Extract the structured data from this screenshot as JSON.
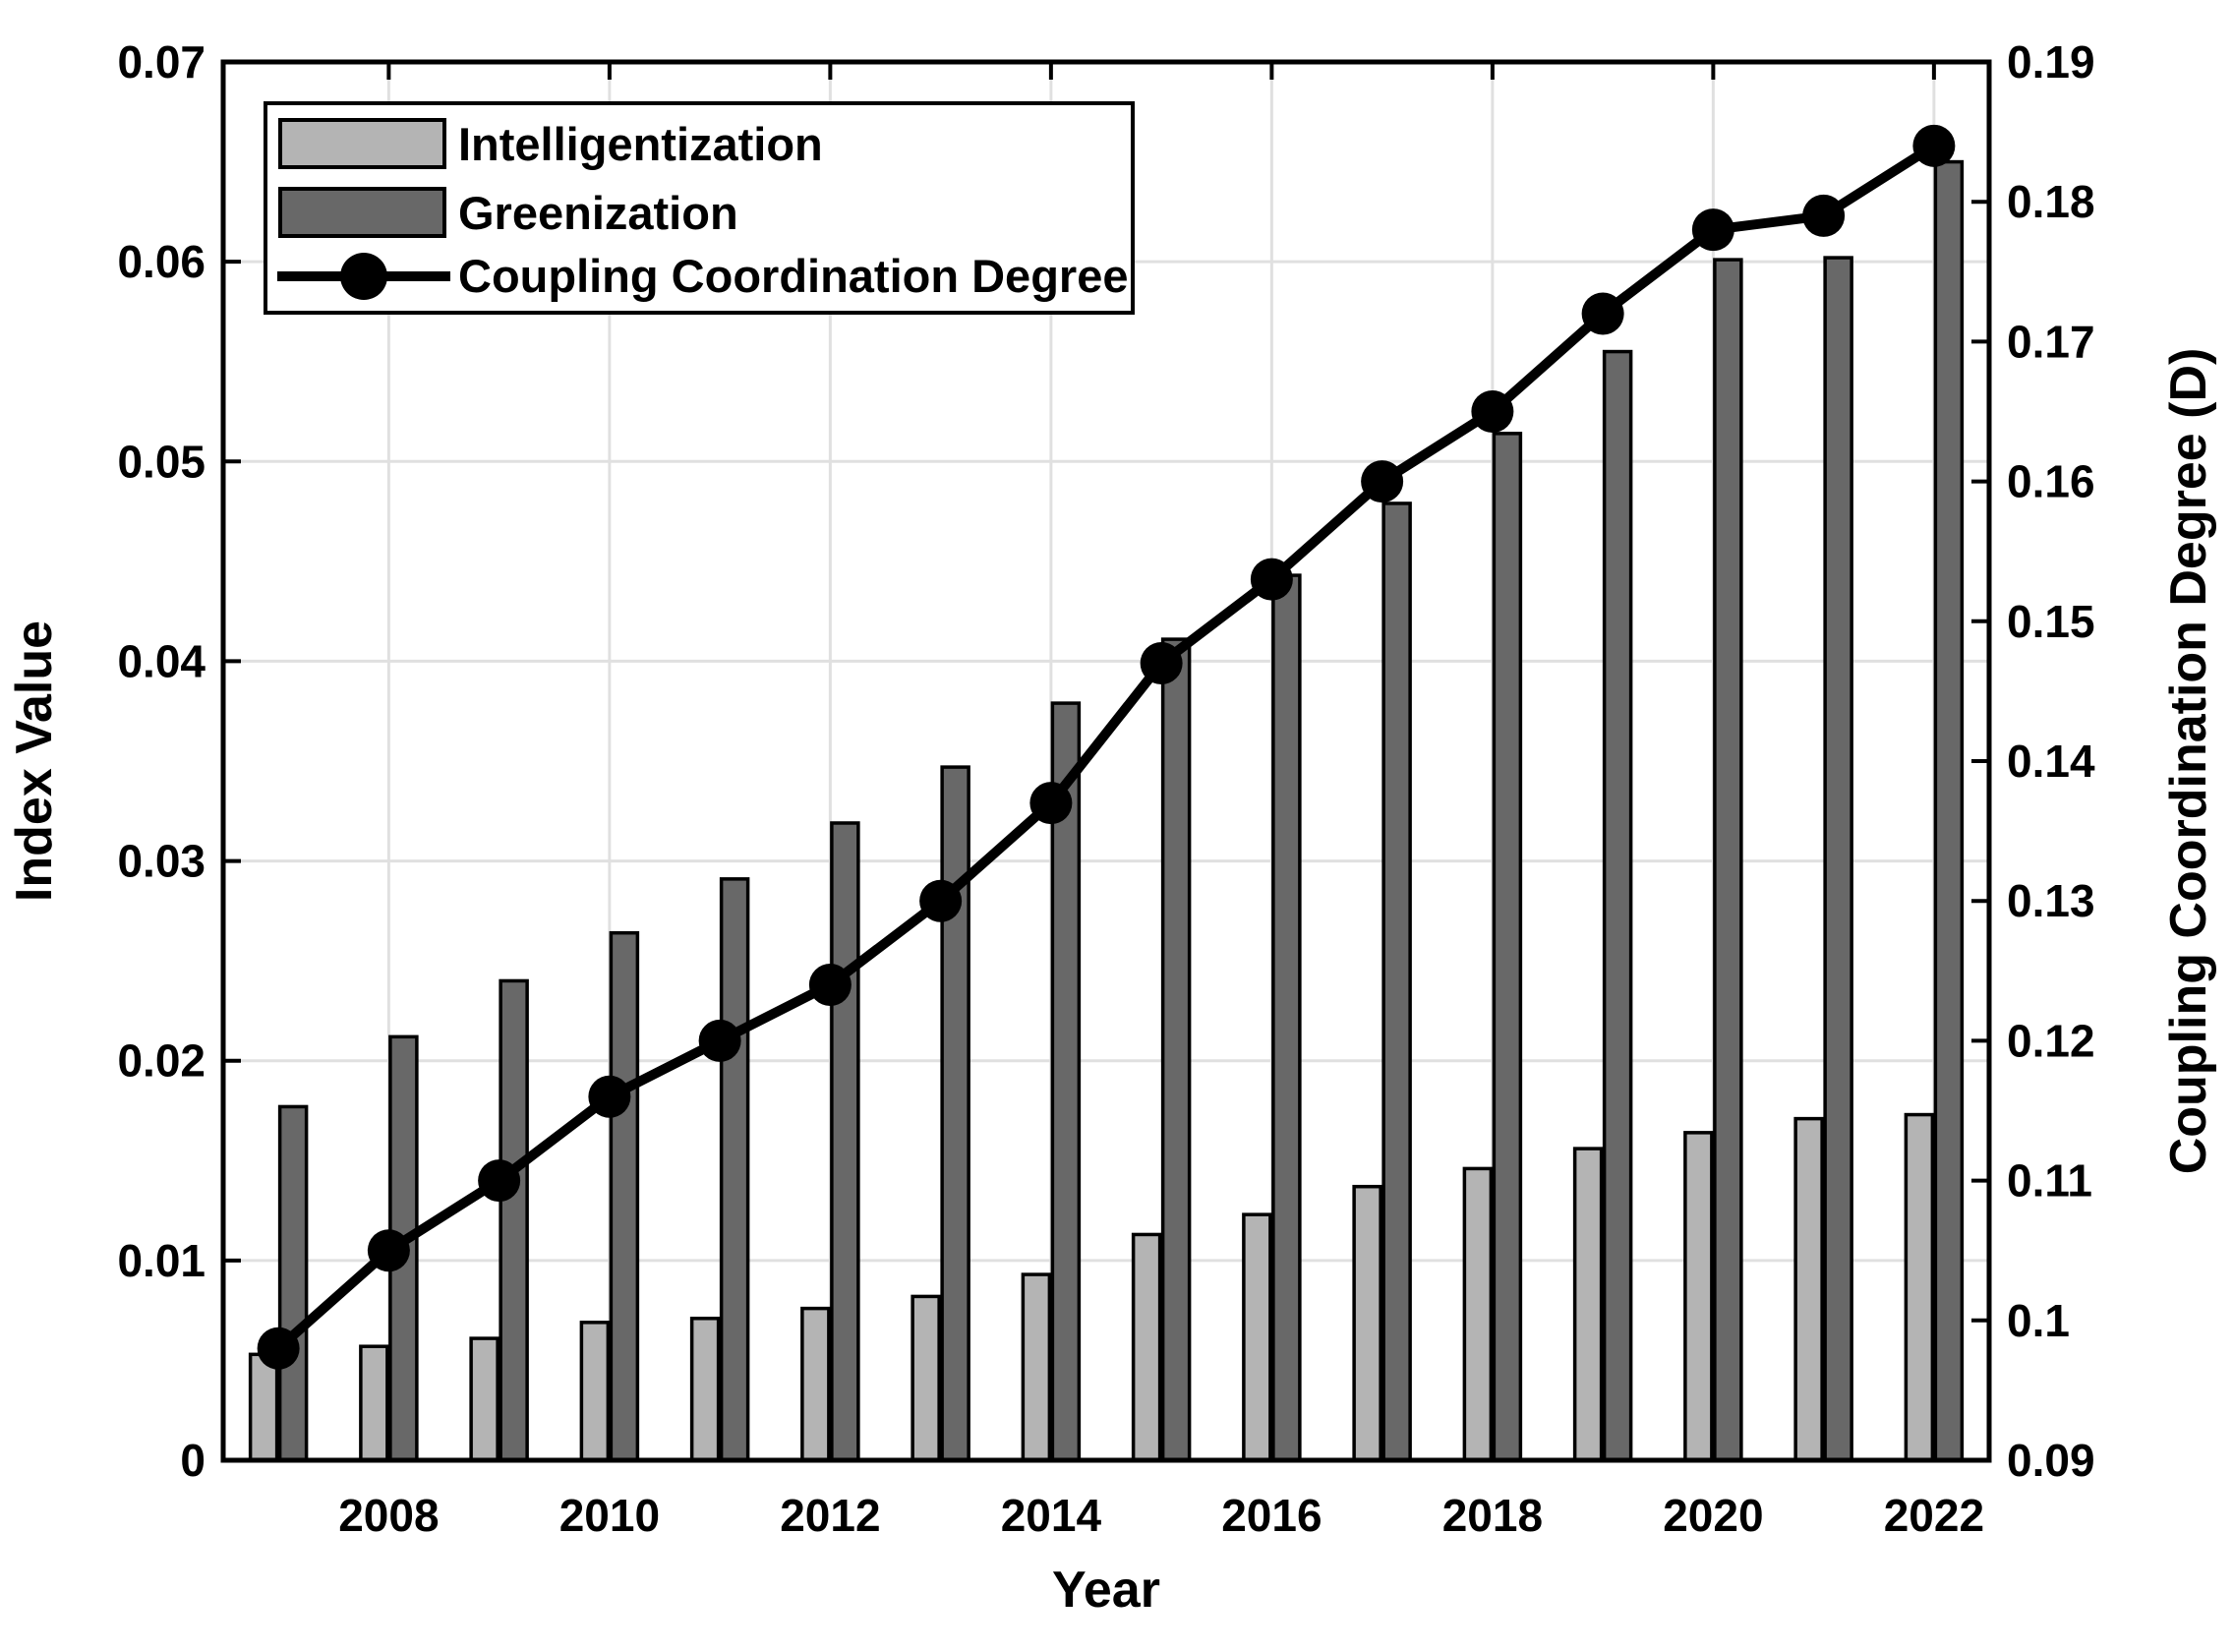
{
  "figure": {
    "background": "#ffffff",
    "frame_color": "#000000",
    "grid_color": "#e0e0e0"
  },
  "left_axis": {
    "title": "Index Value",
    "min": 0,
    "max": 0.07,
    "tick_values": [
      0,
      0.01,
      0.02,
      0.03,
      0.04,
      0.05,
      0.06,
      0.07
    ],
    "tick_labels": [
      "0",
      "0.01",
      "0.02",
      "0.03",
      "0.04",
      "0.05",
      "0.06",
      "0.07"
    ]
  },
  "right_axis": {
    "title": "Coupling Coordination Degree (D)",
    "min": 0.09,
    "max": 0.19,
    "tick_values": [
      0.09,
      0.1,
      0.11,
      0.12,
      0.13,
      0.14,
      0.15,
      0.16,
      0.17,
      0.18,
      0.19
    ],
    "tick_labels": [
      "0.09",
      "0.1",
      "0.11",
      "0.12",
      "0.13",
      "0.14",
      "0.15",
      "0.16",
      "0.17",
      "0.18",
      "0.19"
    ]
  },
  "x_axis": {
    "title": "Year",
    "labeled_years": [
      2008,
      2010,
      2012,
      2014,
      2016,
      2018,
      2020,
      2022
    ]
  },
  "legend": {
    "items": [
      {
        "label": "Intelligentization",
        "swatch": "light-bar"
      },
      {
        "label": "Greenization",
        "swatch": "dark-bar"
      },
      {
        "label": "Coupling Coordination Degree",
        "swatch": "line-marker"
      }
    ]
  },
  "chart_data": {
    "type": "bar",
    "subtype": "grouped-bars-with-line-overlay",
    "title": "",
    "xlabel": "Year",
    "ylabel_left": "Index Value",
    "ylabel_right": "Coupling Coordination Degree (D)",
    "grid": true,
    "legend_position": "top-left-inside",
    "categories": [
      2007,
      2008,
      2009,
      2010,
      2011,
      2012,
      2013,
      2014,
      2015,
      2016,
      2017,
      2018,
      2019,
      2020,
      2021,
      2022
    ],
    "ylim_left": [
      0,
      0.07
    ],
    "ylim_right": [
      0.09,
      0.19
    ],
    "series": [
      {
        "name": "Intelligentization",
        "type": "bar",
        "axis": "left",
        "fill": "#b4b4b4",
        "stroke": "#000000",
        "values": [
          0.0053,
          0.0057,
          0.0061,
          0.0069,
          0.0071,
          0.0076,
          0.0082,
          0.0093,
          0.0113,
          0.0123,
          0.0137,
          0.0146,
          0.0156,
          0.0164,
          0.0171,
          0.0173
        ]
      },
      {
        "name": "Greenization",
        "type": "bar",
        "axis": "left",
        "fill": "#686868",
        "stroke": "#000000",
        "values": [
          0.0177,
          0.0212,
          0.024,
          0.0264,
          0.0291,
          0.0319,
          0.0347,
          0.0379,
          0.0411,
          0.0443,
          0.0479,
          0.0514,
          0.0555,
          0.0601,
          0.0602,
          0.065
        ]
      },
      {
        "name": "Coupling Coordination Degree",
        "type": "line",
        "axis": "right",
        "color": "#000000",
        "marker": "filled-circle",
        "values": [
          0.098,
          0.105,
          0.11,
          0.116,
          0.12,
          0.124,
          0.13,
          0.137,
          0.147,
          0.153,
          0.16,
          0.165,
          0.172,
          0.178,
          0.179,
          0.184
        ]
      }
    ]
  }
}
